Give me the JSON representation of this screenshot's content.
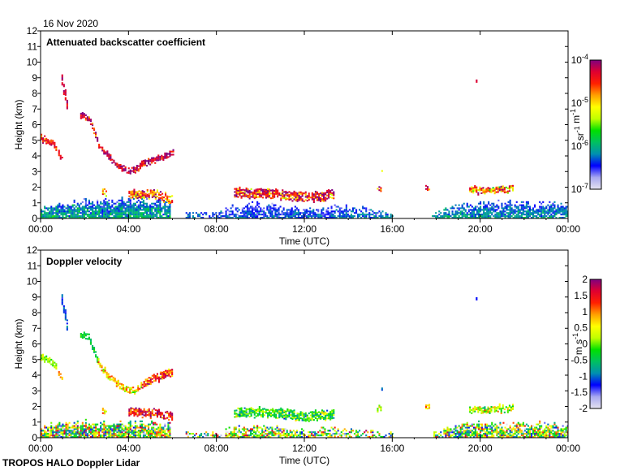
{
  "date": "16 Nov 2020",
  "footer": "TROPOS HALO Doppler Lidar",
  "colormap": [
    "#e4e2f0",
    "#a8a8f0",
    "#0000ff",
    "#0090b0",
    "#00c060",
    "#00e000",
    "#c0ff00",
    "#ffff00",
    "#ffa000",
    "#ff2000",
    "#e00030",
    "#800080"
  ],
  "chart_data": [
    {
      "type": "heatmap",
      "title": "Attenuated backscatter coefficient",
      "xlabel": "Time (UTC)",
      "ylabel": "Height (km)",
      "xlim": [
        0,
        24
      ],
      "ylim": [
        0,
        12
      ],
      "xticks": [
        0,
        4,
        8,
        12,
        16,
        20,
        24
      ],
      "xticklabels": [
        "00:00",
        "04:00",
        "08:00",
        "12:00",
        "16:00",
        "20:00",
        "00:00"
      ],
      "yticklabels": [
        "0",
        "1",
        "2",
        "3",
        "4",
        "5",
        "6",
        "7",
        "8",
        "9",
        "10",
        "11",
        "12"
      ],
      "colorbar": {
        "label": "sr-1 m-1",
        "scale": "log10",
        "range": [
          -7,
          -4
        ],
        "ticks": [
          -4,
          -5,
          -6,
          -7
        ],
        "ticklabels": [
          "10-4",
          "10-5",
          "10-6",
          "10-7"
        ]
      },
      "features": [
        {
          "kind": "layer",
          "t": [
            0,
            5.9
          ],
          "base": 0,
          "top": [
            [
              0,
              0.7
            ],
            [
              1,
              1.0
            ],
            [
              2,
              1.2
            ],
            [
              4,
              1.3
            ],
            [
              5.9,
              1.1
            ]
          ],
          "v": -6.0,
          "sd": 0.25,
          "density": 0.9
        },
        {
          "kind": "layer",
          "t": [
            6.6,
            8.4
          ],
          "base": 0,
          "top": [
            [
              6.6,
              0.3
            ],
            [
              8.4,
              0.4
            ]
          ],
          "v": -6.3,
          "sd": 0.2,
          "density": 0.7
        },
        {
          "kind": "layer",
          "t": [
            8.4,
            13.2
          ],
          "base": 0,
          "top": [
            [
              8.4,
              0.7
            ],
            [
              10,
              1.0
            ],
            [
              12,
              0.6
            ],
            [
              13.2,
              0.7
            ]
          ],
          "v": -6.3,
          "sd": 0.2,
          "density": 0.75
        },
        {
          "kind": "layer",
          "t": [
            13.2,
            16.0
          ],
          "base": 0,
          "top": [
            [
              13.2,
              0.9
            ],
            [
              15,
              0.6
            ],
            [
              16,
              0.3
            ]
          ],
          "v": -6.2,
          "sd": 0.2,
          "density": 0.6
        },
        {
          "kind": "layer",
          "t": [
            17.8,
            24
          ],
          "base": 0,
          "top": [
            [
              17.8,
              0.3
            ],
            [
              19,
              0.9
            ],
            [
              21,
              1.1
            ],
            [
              24,
              0.9
            ]
          ],
          "v": -6.1,
          "sd": 0.2,
          "density": 0.8
        },
        {
          "kind": "trace",
          "pts": [
            [
              0,
              5.1
            ],
            [
              0.5,
              4.8
            ],
            [
              0.7,
              4.5
            ]
          ],
          "thick": 0.35,
          "v": -4.5,
          "sd": 0.3
        },
        {
          "kind": "trace",
          "pts": [
            [
              0.8,
              4.1
            ],
            [
              1.0,
              3.8
            ]
          ],
          "thick": 0.3,
          "v": -4.3,
          "sd": 0.3
        },
        {
          "kind": "trace",
          "pts": [
            [
              0.95,
              8.8
            ],
            [
              1.1,
              7.8
            ],
            [
              1.2,
              7.0
            ]
          ],
          "thick": 0.6,
          "v": -4.2,
          "sd": 0.2
        },
        {
          "kind": "trace",
          "pts": [
            [
              1.8,
              6.6
            ],
            [
              2.2,
              6.4
            ],
            [
              2.4,
              5.5
            ],
            [
              2.6,
              4.8
            ],
            [
              2.9,
              4.2
            ],
            [
              3.3,
              3.6
            ],
            [
              3.8,
              3.1
            ],
            [
              4.2,
              3.0
            ],
            [
              4.6,
              3.4
            ],
            [
              5.0,
              3.7
            ],
            [
              5.5,
              3.9
            ],
            [
              6.0,
              4.2
            ]
          ],
          "thick": 0.35,
          "v": -4.2,
          "sd": 0.4
        },
        {
          "kind": "trace",
          "pts": [
            [
              2.8,
              1.7
            ],
            [
              3.0,
              1.5
            ]
          ],
          "thick": 0.4,
          "v": -4.8,
          "sd": 0.6
        },
        {
          "kind": "trace",
          "pts": [
            [
              4.0,
              1.5
            ],
            [
              5.0,
              1.6
            ],
            [
              6.0,
              1.2
            ]
          ],
          "thick": 0.5,
          "v": -4.6,
          "sd": 0.6
        },
        {
          "kind": "trace",
          "pts": [
            [
              8.8,
              1.6
            ],
            [
              10,
              1.6
            ],
            [
              11,
              1.5
            ],
            [
              12,
              1.3
            ],
            [
              13.3,
              1.5
            ]
          ],
          "thick": 0.55,
          "v": -4.4,
          "sd": 0.6
        },
        {
          "kind": "trace",
          "pts": [
            [
              19.5,
              1.8
            ],
            [
              20.3,
              1.8
            ],
            [
              21.5,
              1.9
            ]
          ],
          "thick": 0.4,
          "v": -4.8,
          "sd": 0.6
        },
        {
          "kind": "trace",
          "pts": [
            [
              19.8,
              8.8
            ],
            [
              19.85,
              8.8
            ]
          ],
          "thick": 0.2,
          "v": -4.2,
          "sd": 0.1
        },
        {
          "kind": "trace",
          "pts": [
            [
              15.5,
              3.1
            ],
            [
              15.55,
              3.1
            ]
          ],
          "thick": 0.15,
          "v": -5.2,
          "sd": 0.1
        },
        {
          "kind": "trace",
          "pts": [
            [
              15.3,
              1.8
            ],
            [
              15.5,
              1.9
            ]
          ],
          "thick": 0.3,
          "v": -4.6,
          "sd": 0.5
        },
        {
          "kind": "trace",
          "pts": [
            [
              17.5,
              2.0
            ],
            [
              17.7,
              1.9
            ]
          ],
          "thick": 0.25,
          "v": -4.6,
          "sd": 0.5
        }
      ]
    },
    {
      "type": "heatmap",
      "title": "Doppler velocity",
      "xlabel": "Time (UTC)",
      "ylabel": "Height (km)",
      "xlim": [
        0,
        24
      ],
      "ylim": [
        0,
        12
      ],
      "xticks": [
        0,
        4,
        8,
        12,
        16,
        20,
        24
      ],
      "xticklabels": [
        "00:00",
        "04:00",
        "08:00",
        "12:00",
        "16:00",
        "20:00",
        "00:00"
      ],
      "yticklabels": [
        "0",
        "1",
        "2",
        "3",
        "4",
        "5",
        "6",
        "7",
        "8",
        "9",
        "10",
        "11",
        "12"
      ],
      "colorbar": {
        "label": "m s-1",
        "scale": "linear",
        "range": [
          -2,
          2
        ],
        "ticks": [
          2,
          1.5,
          1,
          0.5,
          0,
          -0.5,
          -1,
          -1.5,
          -2
        ],
        "ticklabels": [
          "2",
          "1.5",
          "1",
          "0.5",
          "0",
          "-0.5",
          "-1",
          "-1.5",
          "-2"
        ]
      },
      "features": [
        {
          "kind": "layer",
          "t": [
            0,
            5.9
          ],
          "base": 0,
          "top": [
            [
              0,
              0.7
            ],
            [
              1,
              1.0
            ],
            [
              2,
              1.1
            ],
            [
              4,
              1.0
            ],
            [
              5.9,
              0.9
            ]
          ],
          "v": 0,
          "sd": 1.3,
          "density": 0.85
        },
        {
          "kind": "layer",
          "t": [
            6.6,
            8.4
          ],
          "base": 0,
          "top": [
            [
              6.6,
              0.3
            ],
            [
              8.4,
              0.3
            ]
          ],
          "v": 0,
          "sd": 1.2,
          "density": 0.6
        },
        {
          "kind": "layer",
          "t": [
            8.4,
            13.2
          ],
          "base": 0,
          "top": [
            [
              8.4,
              0.6
            ],
            [
              10,
              0.8
            ],
            [
              12,
              0.5
            ],
            [
              13.2,
              0.6
            ]
          ],
          "v": 0,
          "sd": 1.2,
          "density": 0.7
        },
        {
          "kind": "layer",
          "t": [
            13.2,
            16.0
          ],
          "base": 0,
          "top": [
            [
              13.2,
              0.6
            ],
            [
              16,
              0.3
            ]
          ],
          "v": 0,
          "sd": 1.2,
          "density": 0.5
        },
        {
          "kind": "layer",
          "t": [
            17.8,
            24
          ],
          "base": 0,
          "top": [
            [
              17.8,
              0.3
            ],
            [
              19,
              0.9
            ],
            [
              21,
              1.0
            ],
            [
              24,
              0.9
            ]
          ],
          "v": 0,
          "sd": 1.2,
          "density": 0.8
        },
        {
          "kind": "trace",
          "pts": [
            [
              0,
              5.1
            ],
            [
              0.5,
              4.8
            ],
            [
              0.7,
              4.5
            ]
          ],
          "thick": 0.35,
          "v": 0.1,
          "sd": 0.3
        },
        {
          "kind": "trace",
          "pts": [
            [
              0.8,
              4.1
            ],
            [
              1.0,
              3.8
            ]
          ],
          "thick": 0.3,
          "v": 0.8,
          "sd": 0.3
        },
        {
          "kind": "trace",
          "pts": [
            [
              0.95,
              8.8
            ],
            [
              1.1,
              7.8
            ],
            [
              1.2,
              7.0
            ]
          ],
          "thick": 0.6,
          "v": -1.1,
          "sd": 0.2
        },
        {
          "kind": "trace",
          "pts": [
            [
              1.8,
              6.6
            ],
            [
              2.2,
              6.4
            ],
            [
              2.4,
              5.5
            ],
            [
              2.6,
              4.8
            ]
          ],
          "thick": 0.35,
          "v": -0.4,
          "sd": 0.3
        },
        {
          "kind": "trace",
          "pts": [
            [
              2.6,
              4.8
            ],
            [
              2.9,
              4.2
            ],
            [
              3.3,
              3.6
            ],
            [
              3.8,
              3.1
            ],
            [
              4.2,
              3.0
            ],
            [
              4.6,
              3.4
            ]
          ],
          "thick": 0.35,
          "v": 0.6,
          "sd": 0.5
        },
        {
          "kind": "trace",
          "pts": [
            [
              4.6,
              3.4
            ],
            [
              5.0,
              3.7
            ],
            [
              5.5,
              3.9
            ],
            [
              6.0,
              4.2
            ]
          ],
          "thick": 0.45,
          "v": 1.3,
          "sd": 0.7
        },
        {
          "kind": "trace",
          "pts": [
            [
              4.0,
              1.6
            ],
            [
              5.0,
              1.6
            ],
            [
              6.0,
              1.4
            ]
          ],
          "thick": 0.5,
          "v": 1.5,
          "sd": 0.6
        },
        {
          "kind": "trace",
          "pts": [
            [
              2.8,
              1.7
            ],
            [
              3.0,
              1.5
            ]
          ],
          "thick": 0.4,
          "v": 0.6,
          "sd": 0.6
        },
        {
          "kind": "trace",
          "pts": [
            [
              8.8,
              1.6
            ],
            [
              10,
              1.6
            ],
            [
              11,
              1.5
            ],
            [
              12,
              1.3
            ],
            [
              13.3,
              1.5
            ]
          ],
          "thick": 0.55,
          "v": -0.2,
          "sd": 0.6
        },
        {
          "kind": "trace",
          "pts": [
            [
              19.5,
              1.8
            ],
            [
              20.3,
              1.8
            ],
            [
              21.5,
              1.9
            ]
          ],
          "thick": 0.4,
          "v": 0.2,
          "sd": 0.6
        },
        {
          "kind": "trace",
          "pts": [
            [
              19.8,
              8.8
            ],
            [
              19.85,
              8.8
            ]
          ],
          "thick": 0.2,
          "v": -1.2,
          "sd": 0.1
        },
        {
          "kind": "trace",
          "pts": [
            [
              15.5,
              3.1
            ],
            [
              15.55,
              3.1
            ]
          ],
          "thick": 0.15,
          "v": -1.0,
          "sd": 0.1
        },
        {
          "kind": "trace",
          "pts": [
            [
              15.3,
              1.8
            ],
            [
              15.5,
              1.9
            ]
          ],
          "thick": 0.3,
          "v": 0.2,
          "sd": 0.5
        },
        {
          "kind": "trace",
          "pts": [
            [
              17.5,
              2.0
            ],
            [
              17.7,
              1.9
            ]
          ],
          "thick": 0.25,
          "v": 1.0,
          "sd": 0.5
        }
      ]
    }
  ]
}
